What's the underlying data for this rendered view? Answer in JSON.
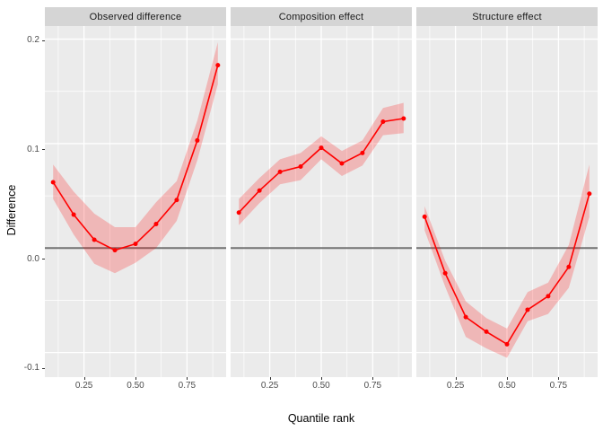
{
  "figure": {
    "background": "#FFFFFF",
    "panel_bg": "#EBEBEB",
    "strip_bg": "#D5D5D5",
    "strip_text_color": "#1A1A1A",
    "grid_color": "#FFFFFF",
    "axis_text_color": "#4D4D4D",
    "axis_title_color": "#000000",
    "tick_mark_color": "#333333"
  },
  "chart_data": {
    "type": "line",
    "title": "",
    "xlabel": "Quantile rank",
    "ylabel": "Difference",
    "legend": "none",
    "grid": "on",
    "line_color": "#FF0000",
    "point_color": "#FF0000",
    "ribbon_color": "#FF0000",
    "ribbon_opacity": 0.22,
    "zero_line": {
      "y": 0,
      "color": "#737373",
      "width": 2
    },
    "x": [
      0.1,
      0.2,
      0.3,
      0.4,
      0.5,
      0.6,
      0.7,
      0.8,
      0.9
    ],
    "xlim": [
      0.06,
      0.94
    ],
    "ylim": [
      -0.1235,
      0.2125
    ],
    "xticks": [
      0.25,
      0.5,
      0.75
    ],
    "xtick_labels": [
      "0.25",
      "0.50",
      "0.75"
    ],
    "xticks_minor": [
      0.125,
      0.375,
      0.625,
      0.875
    ],
    "yticks": [
      0.2,
      0.1,
      0.0,
      -0.1
    ],
    "ytick_labels": [
      "0.2",
      "0.1",
      "0.0",
      "-0.1"
    ],
    "yticks_minor": [
      0.15,
      0.05,
      -0.05
    ],
    "panels": [
      {
        "title": "Observed difference",
        "y": [
          0.063,
          0.032,
          0.008,
          -0.002,
          0.004,
          0.023,
          0.046,
          0.103,
          0.175
        ],
        "lower": [
          0.047,
          0.013,
          -0.015,
          -0.024,
          -0.014,
          0.0,
          0.026,
          0.084,
          0.157
        ],
        "upper": [
          0.08,
          0.054,
          0.033,
          0.02,
          0.02,
          0.044,
          0.064,
          0.122,
          0.197
        ]
      },
      {
        "title": "Composition effect",
        "y": [
          0.034,
          0.055,
          0.073,
          0.078,
          0.096,
          0.081,
          0.091,
          0.121,
          0.124
        ],
        "lower": [
          0.022,
          0.043,
          0.061,
          0.065,
          0.085,
          0.069,
          0.079,
          0.108,
          0.11
        ],
        "upper": [
          0.047,
          0.067,
          0.085,
          0.091,
          0.107,
          0.093,
          0.103,
          0.134,
          0.139
        ]
      },
      {
        "title": "Structure effect",
        "y": [
          0.03,
          -0.024,
          -0.066,
          -0.08,
          -0.092,
          -0.059,
          -0.046,
          -0.018,
          0.052
        ],
        "lower": [
          0.017,
          -0.037,
          -0.085,
          -0.096,
          -0.105,
          -0.07,
          -0.063,
          -0.038,
          0.03
        ],
        "upper": [
          0.04,
          -0.012,
          -0.051,
          -0.067,
          -0.077,
          -0.042,
          -0.033,
          0.003,
          0.08
        ]
      }
    ]
  }
}
